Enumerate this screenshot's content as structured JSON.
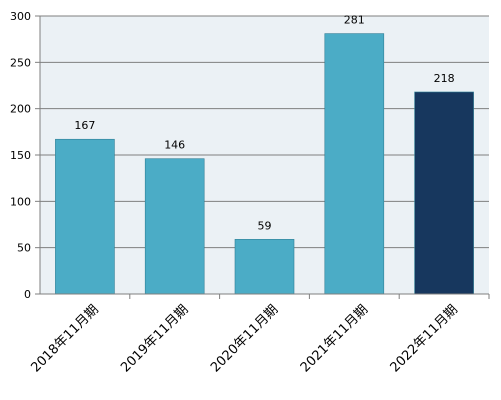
{
  "chart_data": {
    "type": "bar",
    "categories": [
      "2018年11月期",
      "2019年11月期",
      "2020年11月期",
      "2021年11月期",
      "2022年11月期"
    ],
    "values": [
      167,
      146,
      59,
      281,
      218
    ],
    "data_labels": [
      "167",
      "146",
      "59",
      "281",
      "218"
    ],
    "y_ticks": [
      "0",
      "50",
      "100",
      "150",
      "200",
      "250",
      "300"
    ],
    "ylim": [
      0,
      300
    ],
    "grid": true,
    "legend": "none",
    "colors": {
      "bar": "#4bacc6",
      "bar_highlight": "#17375e",
      "bar_outline": "#2f7f95",
      "plot_background": "#ebf1f5",
      "gridline": "#7f7f7f",
      "axis": "#7f7f7f"
    },
    "highlight_index": 4
  }
}
